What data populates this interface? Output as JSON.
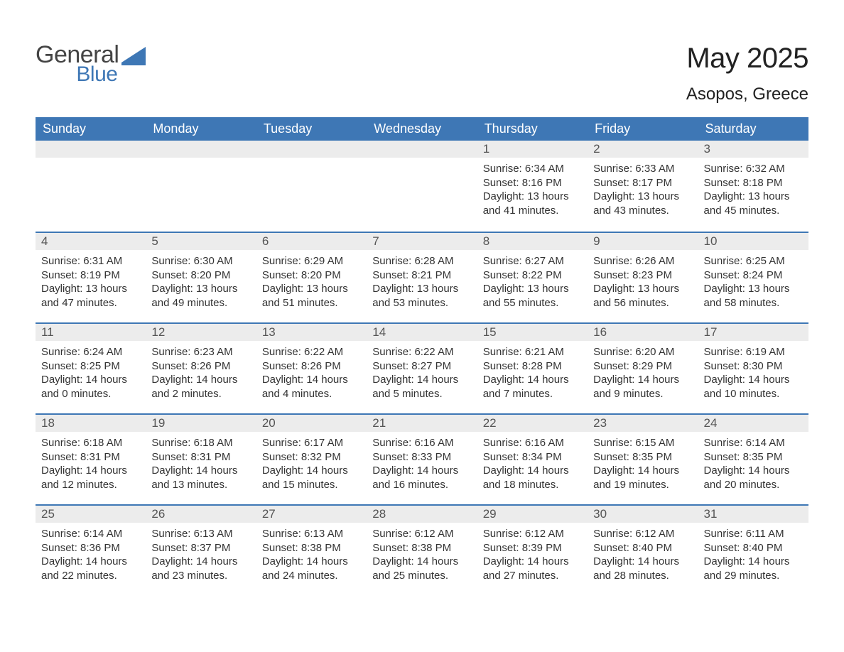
{
  "logo": {
    "word1": "General",
    "word2": "Blue"
  },
  "title": "May 2025",
  "location": "Asopos, Greece",
  "colors": {
    "brand": "#3e77b5",
    "header_bg": "#3e77b5",
    "daynum_bg": "#ececec",
    "text": "#333333"
  },
  "weekdays": [
    "Sunday",
    "Monday",
    "Tuesday",
    "Wednesday",
    "Thursday",
    "Friday",
    "Saturday"
  ],
  "first_weekday_index": 4,
  "days": [
    {
      "n": 1,
      "sunrise": "6:34 AM",
      "sunset": "8:16 PM",
      "dlh": 13,
      "dlm": 41
    },
    {
      "n": 2,
      "sunrise": "6:33 AM",
      "sunset": "8:17 PM",
      "dlh": 13,
      "dlm": 43
    },
    {
      "n": 3,
      "sunrise": "6:32 AM",
      "sunset": "8:18 PM",
      "dlh": 13,
      "dlm": 45
    },
    {
      "n": 4,
      "sunrise": "6:31 AM",
      "sunset": "8:19 PM",
      "dlh": 13,
      "dlm": 47
    },
    {
      "n": 5,
      "sunrise": "6:30 AM",
      "sunset": "8:20 PM",
      "dlh": 13,
      "dlm": 49
    },
    {
      "n": 6,
      "sunrise": "6:29 AM",
      "sunset": "8:20 PM",
      "dlh": 13,
      "dlm": 51
    },
    {
      "n": 7,
      "sunrise": "6:28 AM",
      "sunset": "8:21 PM",
      "dlh": 13,
      "dlm": 53
    },
    {
      "n": 8,
      "sunrise": "6:27 AM",
      "sunset": "8:22 PM",
      "dlh": 13,
      "dlm": 55
    },
    {
      "n": 9,
      "sunrise": "6:26 AM",
      "sunset": "8:23 PM",
      "dlh": 13,
      "dlm": 56
    },
    {
      "n": 10,
      "sunrise": "6:25 AM",
      "sunset": "8:24 PM",
      "dlh": 13,
      "dlm": 58
    },
    {
      "n": 11,
      "sunrise": "6:24 AM",
      "sunset": "8:25 PM",
      "dlh": 14,
      "dlm": 0
    },
    {
      "n": 12,
      "sunrise": "6:23 AM",
      "sunset": "8:26 PM",
      "dlh": 14,
      "dlm": 2
    },
    {
      "n": 13,
      "sunrise": "6:22 AM",
      "sunset": "8:26 PM",
      "dlh": 14,
      "dlm": 4
    },
    {
      "n": 14,
      "sunrise": "6:22 AM",
      "sunset": "8:27 PM",
      "dlh": 14,
      "dlm": 5
    },
    {
      "n": 15,
      "sunrise": "6:21 AM",
      "sunset": "8:28 PM",
      "dlh": 14,
      "dlm": 7
    },
    {
      "n": 16,
      "sunrise": "6:20 AM",
      "sunset": "8:29 PM",
      "dlh": 14,
      "dlm": 9
    },
    {
      "n": 17,
      "sunrise": "6:19 AM",
      "sunset": "8:30 PM",
      "dlh": 14,
      "dlm": 10
    },
    {
      "n": 18,
      "sunrise": "6:18 AM",
      "sunset": "8:31 PM",
      "dlh": 14,
      "dlm": 12
    },
    {
      "n": 19,
      "sunrise": "6:18 AM",
      "sunset": "8:31 PM",
      "dlh": 14,
      "dlm": 13
    },
    {
      "n": 20,
      "sunrise": "6:17 AM",
      "sunset": "8:32 PM",
      "dlh": 14,
      "dlm": 15
    },
    {
      "n": 21,
      "sunrise": "6:16 AM",
      "sunset": "8:33 PM",
      "dlh": 14,
      "dlm": 16
    },
    {
      "n": 22,
      "sunrise": "6:16 AM",
      "sunset": "8:34 PM",
      "dlh": 14,
      "dlm": 18
    },
    {
      "n": 23,
      "sunrise": "6:15 AM",
      "sunset": "8:35 PM",
      "dlh": 14,
      "dlm": 19
    },
    {
      "n": 24,
      "sunrise": "6:14 AM",
      "sunset": "8:35 PM",
      "dlh": 14,
      "dlm": 20
    },
    {
      "n": 25,
      "sunrise": "6:14 AM",
      "sunset": "8:36 PM",
      "dlh": 14,
      "dlm": 22
    },
    {
      "n": 26,
      "sunrise": "6:13 AM",
      "sunset": "8:37 PM",
      "dlh": 14,
      "dlm": 23
    },
    {
      "n": 27,
      "sunrise": "6:13 AM",
      "sunset": "8:38 PM",
      "dlh": 14,
      "dlm": 24
    },
    {
      "n": 28,
      "sunrise": "6:12 AM",
      "sunset": "8:38 PM",
      "dlh": 14,
      "dlm": 25
    },
    {
      "n": 29,
      "sunrise": "6:12 AM",
      "sunset": "8:39 PM",
      "dlh": 14,
      "dlm": 27
    },
    {
      "n": 30,
      "sunrise": "6:12 AM",
      "sunset": "8:40 PM",
      "dlh": 14,
      "dlm": 28
    },
    {
      "n": 31,
      "sunrise": "6:11 AM",
      "sunset": "8:40 PM",
      "dlh": 14,
      "dlm": 29
    }
  ],
  "labels": {
    "sunrise": "Sunrise:",
    "sunset": "Sunset:",
    "daylight_prefix": "Daylight:",
    "hours_word": "hours",
    "and_word": "and",
    "minutes_word": "minutes."
  }
}
